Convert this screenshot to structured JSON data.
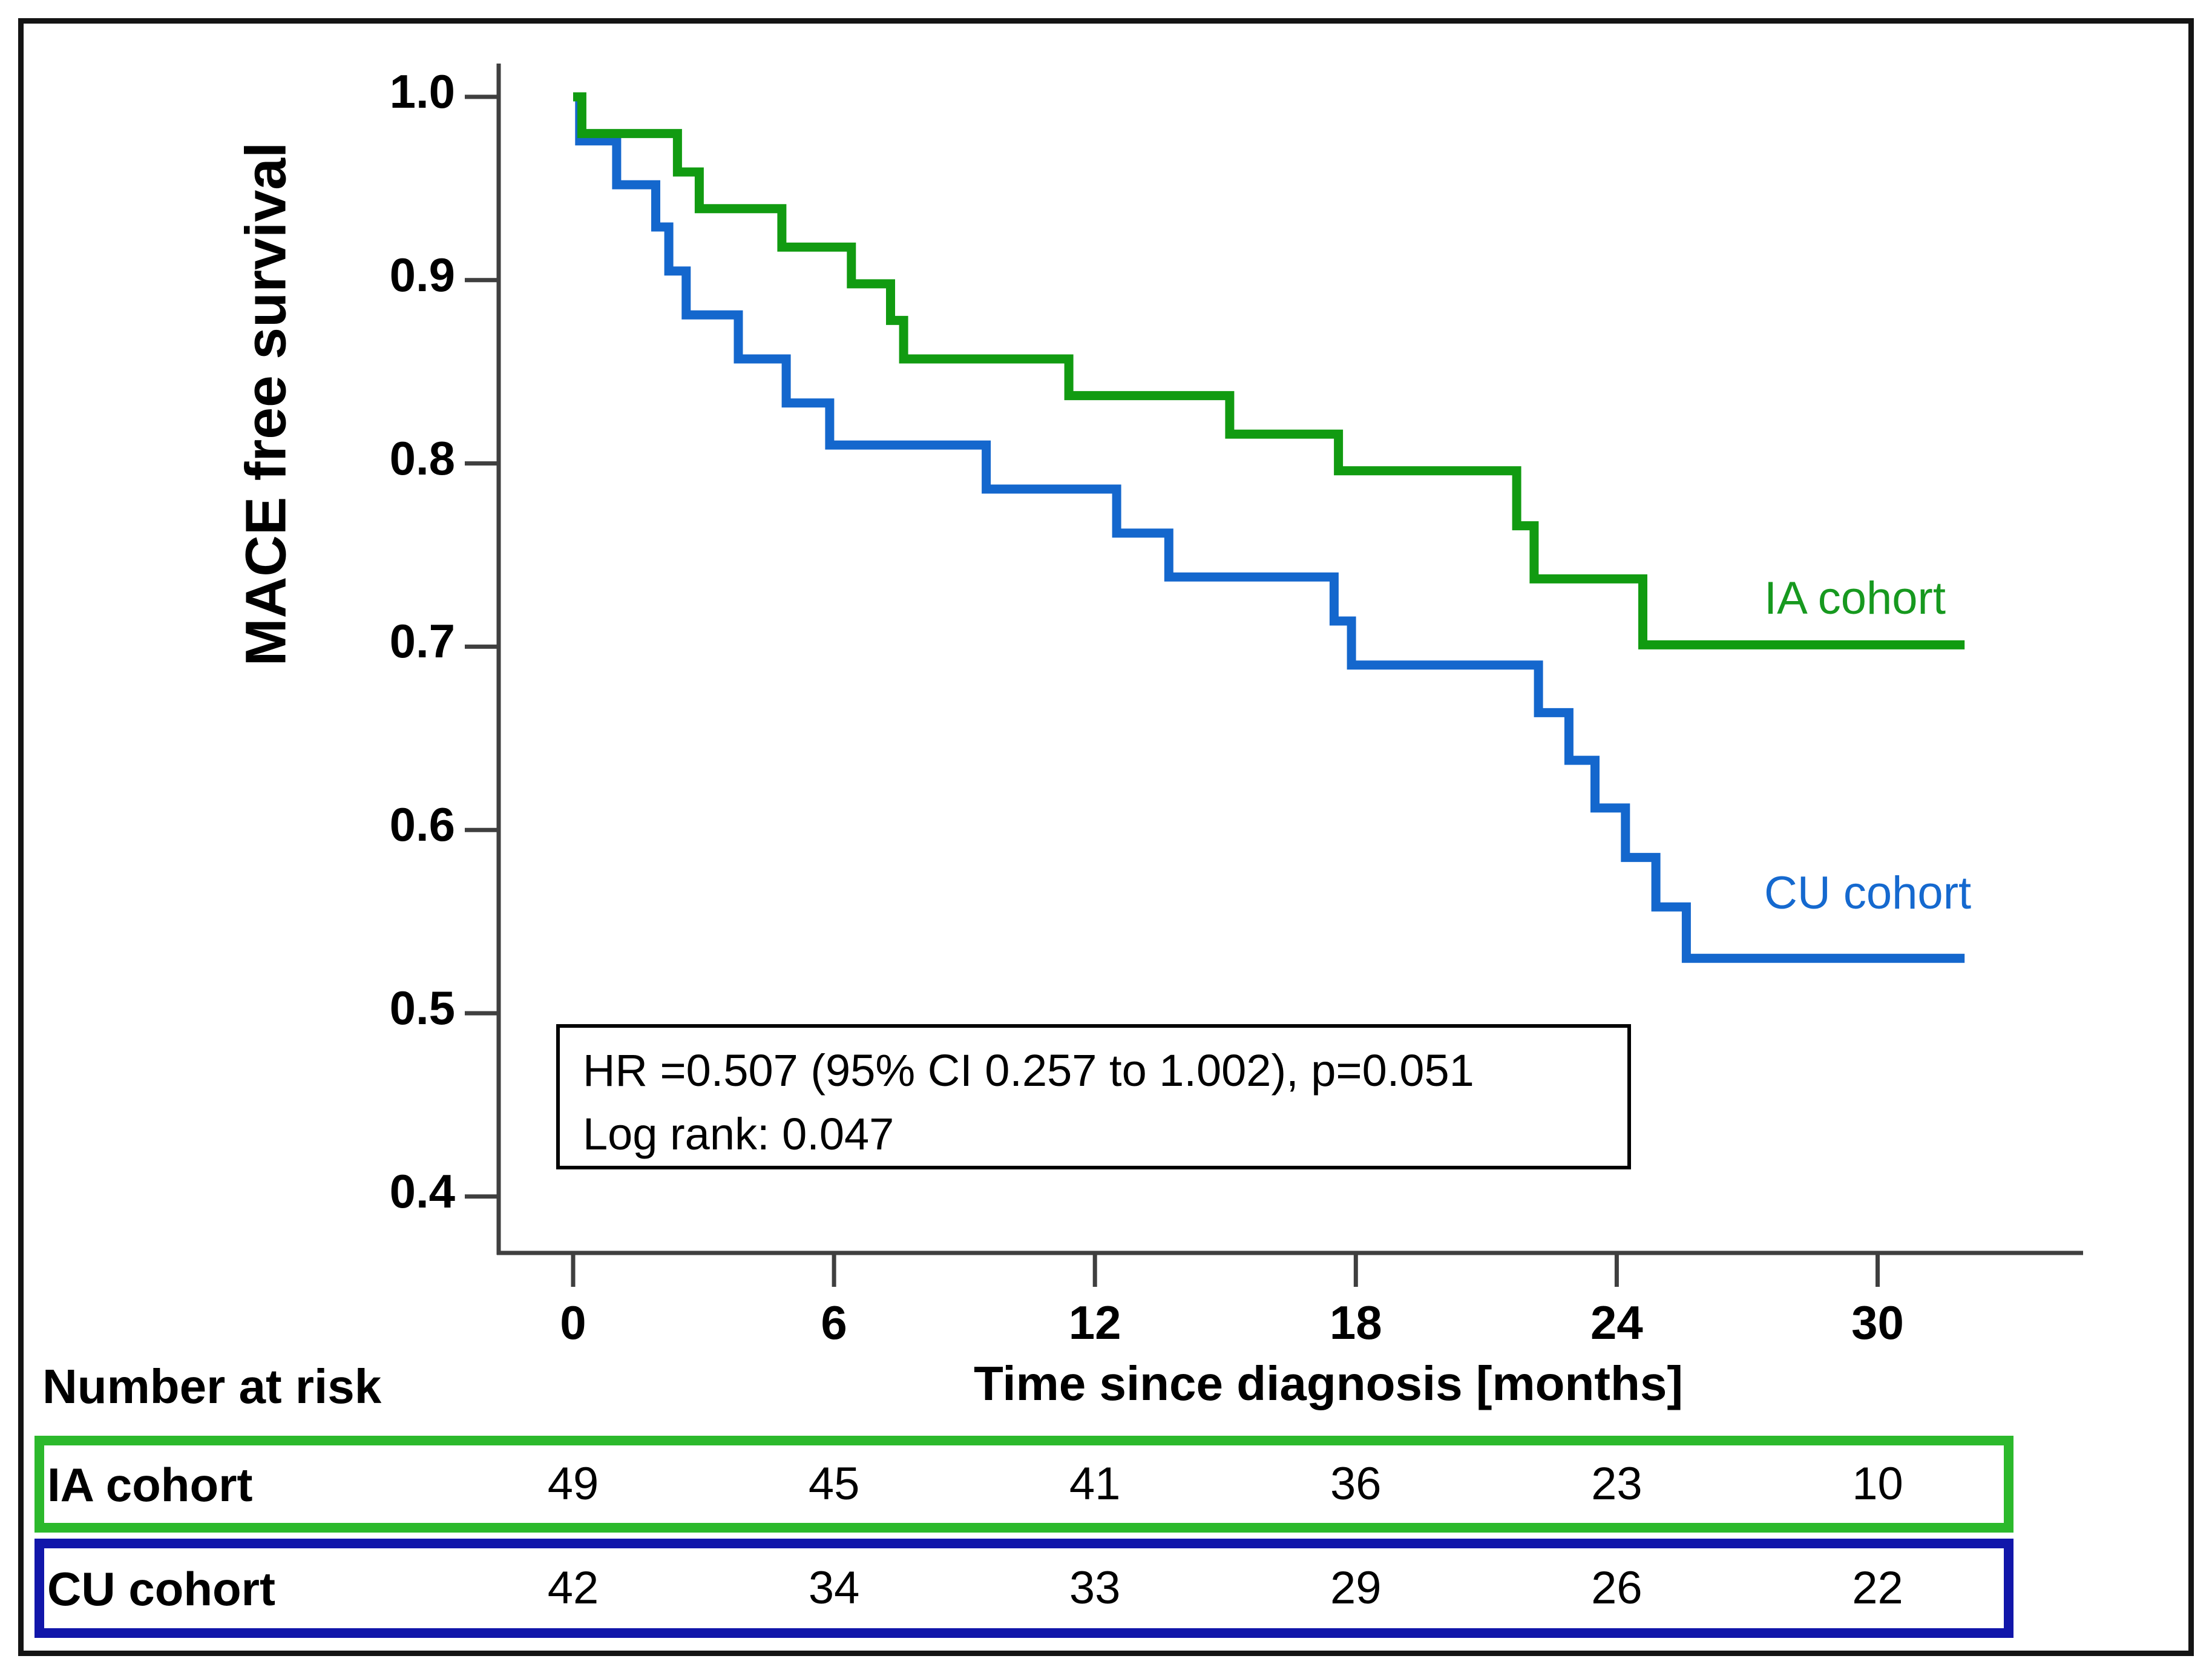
{
  "chart_data": {
    "type": "line",
    "subtype": "kaplan-meier-step",
    "title": "",
    "xlabel": "Time since diagnosis [months]",
    "ylabel": "MACE free survival",
    "xlim": [
      -1.7,
      34.5
    ],
    "ylim": [
      0.37,
      1.02
    ],
    "x_ticks": [
      "0",
      "6",
      "12",
      "18",
      "24",
      "30"
    ],
    "x_tick_values": [
      0,
      6,
      12,
      18,
      24,
      30
    ],
    "y_ticks": [
      "1.0",
      "0.9",
      "0.8",
      "0.7",
      "0.6",
      "0.5",
      "0.4"
    ],
    "y_tick_values": [
      1.0,
      0.9,
      0.8,
      0.7,
      0.6,
      0.5,
      0.4
    ],
    "grid": false,
    "legend_position": "right-inline",
    "x_end": 32,
    "series": [
      {
        "name": "IA cohort",
        "color": "#119b11",
        "x": [
          0,
          0.2,
          2.4,
          2.9,
          4.8,
          6.4,
          7.3,
          7.6,
          11.4,
          15.1,
          17.6,
          21.7,
          22.1,
          24.6
        ],
        "y": [
          1.0,
          0.98,
          0.959,
          0.939,
          0.918,
          0.898,
          0.878,
          0.857,
          0.837,
          0.816,
          0.796,
          0.766,
          0.737,
          0.701
        ]
      },
      {
        "name": "CU cohort",
        "color": "#1467cd",
        "x": [
          0,
          0.15,
          1.0,
          1.9,
          2.2,
          2.6,
          3.8,
          4.9,
          5.9,
          9.5,
          12.5,
          13.7,
          17.5,
          17.9,
          22.2,
          22.9,
          23.5,
          24.2,
          24.9,
          25.6
        ],
        "y": [
          1.0,
          0.976,
          0.952,
          0.929,
          0.905,
          0.881,
          0.857,
          0.833,
          0.81,
          0.786,
          0.762,
          0.738,
          0.714,
          0.69,
          0.664,
          0.638,
          0.612,
          0.585,
          0.558,
          0.53
        ]
      }
    ]
  },
  "annotation": {
    "line1": "HR =0.507 (95% CI 0.257 to 1.002), p=0.051",
    "line2": "Log rank: 0.047"
  },
  "risk_table": {
    "title": "Number at risk",
    "columns": [
      "0",
      "6",
      "12",
      "18",
      "24",
      "30"
    ],
    "rows": [
      {
        "label": "IA cohort",
        "values": [
          "49",
          "45",
          "41",
          "36",
          "23",
          "10"
        ],
        "box_color": "#2cb92c"
      },
      {
        "label": "CU cohort",
        "values": [
          "42",
          "34",
          "33",
          "29",
          "26",
          "22"
        ],
        "box_color": "#1116aa"
      }
    ]
  },
  "colors": {
    "ia_green": "#119b11",
    "cu_blue": "#1467cd",
    "ia_box_green": "#2cb92c",
    "cu_box_navy": "#1116aa",
    "axis": "#3f3f3f",
    "frame": "#141414"
  }
}
